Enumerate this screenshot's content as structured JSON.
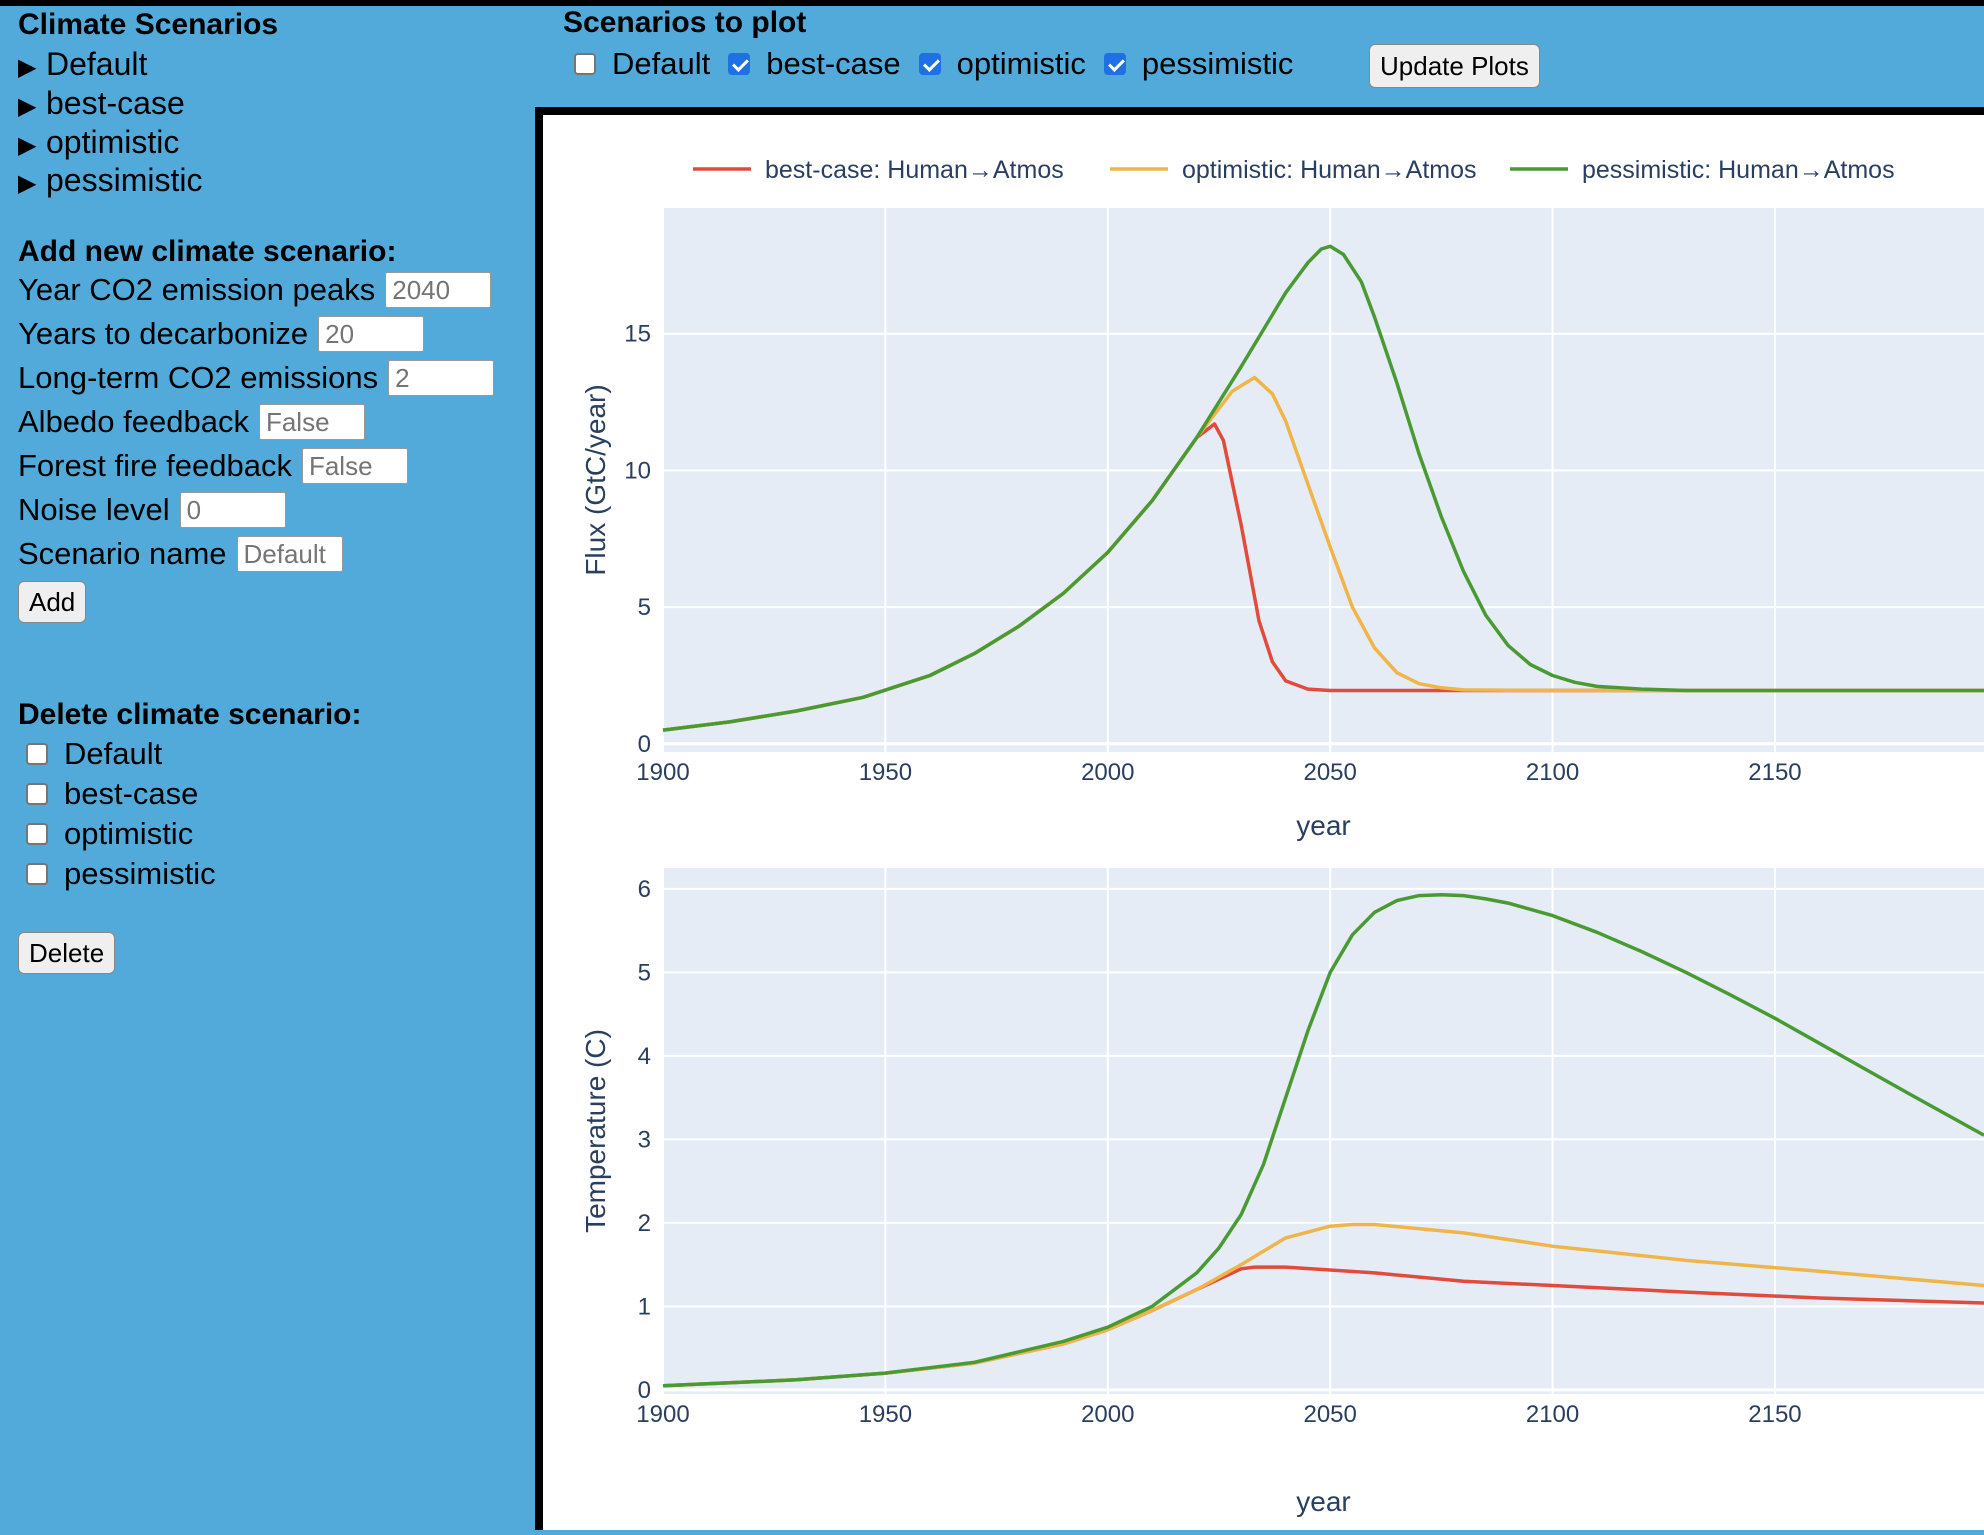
{
  "sidebar": {
    "scenarios_title": "Climate Scenarios",
    "scenario_items": [
      "Default",
      "best-case",
      "optimistic",
      "pessimistic"
    ],
    "add_title": "Add new climate scenario:",
    "fields": {
      "peak_year": {
        "label": "Year CO2 emission peaks",
        "placeholder": "2040"
      },
      "decarbonize": {
        "label": "Years to decarbonize",
        "placeholder": "20"
      },
      "longterm": {
        "label": "Long-term CO2 emissions",
        "placeholder": "2"
      },
      "albedo": {
        "label": "Albedo feedback",
        "placeholder": "False"
      },
      "forestfire": {
        "label": "Forest fire feedback",
        "placeholder": "False"
      },
      "noise": {
        "label": "Noise level",
        "placeholder": "0"
      },
      "name": {
        "label": "Scenario name",
        "placeholder": "Default"
      }
    },
    "add_button": "Add",
    "delete_title": "Delete climate scenario:",
    "delete_items": [
      "Default",
      "best-case",
      "optimistic",
      "pessimistic"
    ],
    "delete_button": "Delete"
  },
  "plot_controls": {
    "title": "Scenarios to plot",
    "options": [
      {
        "label": "Default",
        "checked": false
      },
      {
        "label": "best-case",
        "checked": true
      },
      {
        "label": "optimistic",
        "checked": true
      },
      {
        "label": "pessimistic",
        "checked": true
      }
    ],
    "update_button": "Update Plots"
  },
  "chart_data": [
    {
      "type": "line",
      "xlabel": "year",
      "ylabel": "Flux  (GtC/year)",
      "xlim": [
        1900,
        2197
      ],
      "ylim": [
        -0.3,
        19.6
      ],
      "xticks": [
        1900,
        1950,
        2000,
        2050,
        2100,
        2150
      ],
      "yticks": [
        0,
        5,
        10,
        15
      ],
      "legend": "top",
      "series": [
        {
          "name": "best-case: Human→Atmos",
          "color": "#e24a3b",
          "x": [
            1900,
            1915,
            1930,
            1945,
            1960,
            1970,
            1980,
            1990,
            2000,
            2010,
            2020,
            2024,
            2026,
            2030,
            2034,
            2037,
            2040,
            2045,
            2050,
            2070,
            2100,
            2197
          ],
          "y": [
            0.5,
            0.8,
            1.2,
            1.7,
            2.5,
            3.3,
            4.3,
            5.5,
            7.0,
            8.9,
            11.2,
            11.7,
            11.1,
            8.0,
            4.5,
            3.0,
            2.3,
            2.0,
            1.95,
            1.95,
            1.95,
            1.95
          ]
        },
        {
          "name": "optimistic: Human→Atmos",
          "color": "#f0b54a",
          "x": [
            1900,
            1915,
            1930,
            1945,
            1960,
            1970,
            1980,
            1990,
            2000,
            2010,
            2020,
            2028,
            2033,
            2037,
            2040,
            2045,
            2050,
            2055,
            2060,
            2065,
            2070,
            2075,
            2080,
            2100,
            2197
          ],
          "y": [
            0.5,
            0.8,
            1.2,
            1.7,
            2.5,
            3.3,
            4.3,
            5.5,
            7.0,
            8.9,
            11.2,
            12.9,
            13.4,
            12.8,
            11.8,
            9.5,
            7.2,
            5.0,
            3.5,
            2.6,
            2.2,
            2.05,
            1.97,
            1.95,
            1.95
          ]
        },
        {
          "name": "pessimistic: Human→Atmos",
          "color": "#4a9a34",
          "x": [
            1900,
            1915,
            1930,
            1945,
            1960,
            1970,
            1980,
            1990,
            2000,
            2010,
            2020,
            2030,
            2040,
            2045,
            2048,
            2050,
            2053,
            2057,
            2060,
            2065,
            2070,
            2075,
            2080,
            2085,
            2090,
            2095,
            2100,
            2105,
            2110,
            2120,
            2130,
            2197
          ],
          "y": [
            0.5,
            0.8,
            1.2,
            1.7,
            2.5,
            3.3,
            4.3,
            5.5,
            7.0,
            8.9,
            11.2,
            13.8,
            16.5,
            17.6,
            18.1,
            18.2,
            17.9,
            16.9,
            15.6,
            13.2,
            10.6,
            8.3,
            6.3,
            4.7,
            3.6,
            2.9,
            2.5,
            2.25,
            2.1,
            2.0,
            1.95,
            1.95
          ]
        }
      ]
    },
    {
      "type": "line",
      "xlabel": "year",
      "ylabel": "Temperature  (C)",
      "xlim": [
        1900,
        2197
      ],
      "ylim": [
        -0.05,
        6.25
      ],
      "xticks": [
        1900,
        1950,
        2000,
        2050,
        2100,
        2150
      ],
      "yticks": [
        0,
        1,
        2,
        3,
        4,
        5,
        6
      ],
      "series": [
        {
          "name": "best-case",
          "color": "#e24a3b",
          "x": [
            1900,
            1930,
            1950,
            1970,
            1990,
            2000,
            2010,
            2020,
            2030,
            2033,
            2040,
            2060,
            2080,
            2100,
            2130,
            2160,
            2197
          ],
          "y": [
            0.05,
            0.12,
            0.2,
            0.32,
            0.55,
            0.72,
            0.95,
            1.2,
            1.45,
            1.47,
            1.47,
            1.4,
            1.3,
            1.25,
            1.17,
            1.1,
            1.04
          ]
        },
        {
          "name": "optimistic",
          "color": "#f0b54a",
          "x": [
            1900,
            1930,
            1950,
            1970,
            1990,
            2000,
            2010,
            2020,
            2030,
            2040,
            2050,
            2055,
            2060,
            2080,
            2100,
            2130,
            2160,
            2197
          ],
          "y": [
            0.05,
            0.12,
            0.2,
            0.32,
            0.55,
            0.72,
            0.95,
            1.2,
            1.5,
            1.82,
            1.96,
            1.98,
            1.98,
            1.88,
            1.72,
            1.55,
            1.42,
            1.25
          ]
        },
        {
          "name": "pessimistic",
          "color": "#4a9a34",
          "x": [
            1900,
            1930,
            1950,
            1970,
            1990,
            2000,
            2010,
            2020,
            2025,
            2030,
            2035,
            2040,
            2045,
            2050,
            2055,
            2060,
            2065,
            2070,
            2075,
            2080,
            2085,
            2090,
            2100,
            2110,
            2120,
            2130,
            2140,
            2150,
            2160,
            2170,
            2180,
            2197
          ],
          "y": [
            0.05,
            0.12,
            0.2,
            0.33,
            0.58,
            0.75,
            1.0,
            1.4,
            1.7,
            2.1,
            2.7,
            3.5,
            4.3,
            5.0,
            5.45,
            5.72,
            5.86,
            5.92,
            5.93,
            5.92,
            5.88,
            5.83,
            5.68,
            5.48,
            5.25,
            5.0,
            4.73,
            4.45,
            4.15,
            3.85,
            3.55,
            3.05
          ]
        }
      ]
    }
  ]
}
